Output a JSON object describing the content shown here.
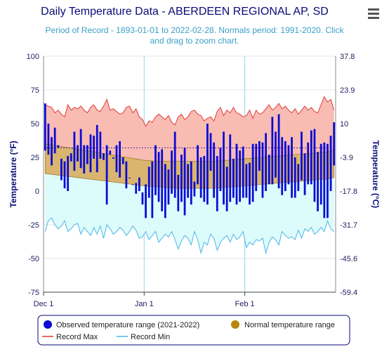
{
  "header": {
    "title": "Daily Temperature Data - ABERDEEN REGIONAL AP, SD",
    "subtitle_line1": "Period of Record - 1893-01-01 to 2022-02-28. Normals period: 1991-2020. Click",
    "subtitle_line2": "and drag to zoom chart.",
    "menu_icon": "hamburger-menu-icon"
  },
  "chart_data": {
    "type": "bar",
    "title": "Daily Temperature Data - ABERDEEN REGIONAL AP, SD",
    "xlabel": "",
    "ylabel": "Temperature (°F)",
    "ylabel_right": "Temperature (°C)",
    "ylim": [
      -75,
      100
    ],
    "ylim_right": [
      -59.4,
      37.8
    ],
    "y_ticks": [
      "100",
      "75",
      "50",
      "25",
      "0",
      "-25",
      "-50",
      "-75"
    ],
    "y_ticks_values": [
      100,
      75,
      50,
      25,
      0,
      -25,
      -50,
      -75
    ],
    "y_right_ticks": [
      "37.8",
      "23.9",
      "10",
      "-3.9",
      "-17.8",
      "-31.7",
      "-45.6",
      "-59.4"
    ],
    "x_ticks": [
      "Dec 1",
      "Jan 1",
      "Feb 1"
    ],
    "x_ticks_day_index": [
      0,
      31,
      62
    ],
    "n_days": 90,
    "freezing_line_f": 32,
    "grid": true,
    "legend_position": "bottom",
    "legend": [
      {
        "label": "Observed temperature range (2021-2022)",
        "color": "#0b0bd6"
      },
      {
        "label": "Normal temperature range",
        "color": "#b8860b"
      },
      {
        "label": "Record Max",
        "color": "#e23b3b"
      },
      {
        "label": "Record Min",
        "color": "#4bb6e6"
      }
    ],
    "observed_low": [
      30,
      27,
      19,
      28,
      32,
      8,
      2,
      0,
      22,
      15,
      22,
      17,
      13,
      20,
      14,
      24,
      14,
      24,
      23,
      -10,
      27,
      24,
      14,
      10,
      20,
      2,
      14,
      6,
      -2,
      0,
      -10,
      -20,
      -5,
      -20,
      -3,
      -8,
      -15,
      -20,
      -10,
      -2,
      -5,
      -15,
      -8,
      -18,
      -5,
      -10,
      -4,
      5,
      -5,
      -8,
      -10,
      15,
      -5,
      -15,
      0,
      -10,
      -15,
      -8,
      -5,
      -10,
      -8,
      -5,
      -5,
      -10,
      -8,
      0,
      15,
      -5,
      0,
      5,
      5,
      10,
      2,
      -3,
      0,
      5,
      -5,
      -5,
      0,
      8,
      -3,
      5,
      5,
      -8,
      -15,
      -10,
      -20,
      -20,
      0,
      19
    ],
    "observed_high": [
      65,
      50,
      40,
      47,
      34,
      24,
      22,
      26,
      28,
      44,
      34,
      46,
      34,
      34,
      42,
      41,
      49,
      44,
      28,
      34,
      30,
      25,
      34,
      37,
      25,
      22,
      10,
      5,
      6,
      10,
      -1,
      5,
      18,
      22,
      34,
      29,
      31,
      20,
      16,
      30,
      44,
      12,
      27,
      32,
      20,
      22,
      7,
      34,
      25,
      26,
      50,
      43,
      36,
      26,
      32,
      44,
      18,
      42,
      24,
      35,
      30,
      33,
      20,
      21,
      35,
      35,
      37,
      36,
      43,
      27,
      55,
      44,
      57,
      40,
      37,
      34,
      40,
      25,
      20,
      44,
      28,
      36,
      45,
      46,
      29,
      35,
      36,
      35,
      41,
      51
    ],
    "normal_low": [
      13,
      12.7,
      12.4,
      12.1,
      11.8,
      11.5,
      11.2,
      10.9,
      10.6,
      10.3,
      10,
      9.7,
      9.4,
      9.1,
      8.8,
      8.5,
      8.2,
      7.9,
      7.6,
      7.3,
      7,
      6.7,
      6.4,
      6.1,
      5.8,
      5.5,
      5.2,
      4.9,
      4.6,
      4.3,
      4,
      3.8,
      3.6,
      3.4,
      3.2,
      3,
      2.8,
      2.6,
      2.4,
      2.2,
      2,
      2,
      2,
      2,
      2,
      2,
      2,
      2,
      2,
      2,
      2,
      2,
      2,
      2.2,
      2.4,
      2.6,
      2.8,
      3,
      3.2,
      3.4,
      3.6,
      3.8,
      4,
      4.2,
      4.4,
      4.6,
      4.8,
      5,
      5.2,
      5.4,
      5.6,
      5.8,
      6,
      6.2,
      6.4,
      6.6,
      6.8,
      7,
      7.2,
      7.4,
      7.6,
      7.8,
      8,
      8.2,
      8.4,
      8.6,
      8.8,
      9,
      9.5,
      10
    ],
    "normal_high": [
      35,
      34.6,
      34.2,
      33.8,
      33.4,
      33,
      32.6,
      32.2,
      31.8,
      31.4,
      31,
      30.6,
      30.2,
      29.8,
      29.4,
      29,
      28.6,
      28.2,
      27.8,
      27.4,
      27,
      26.6,
      26.2,
      25.8,
      25.4,
      25,
      24.6,
      24.2,
      23.8,
      23.4,
      23,
      22.8,
      22.6,
      22.4,
      22.2,
      22,
      22,
      22,
      22,
      22,
      22,
      22,
      22,
      22,
      22,
      22,
      22,
      22,
      22,
      22,
      22,
      22,
      22,
      22.2,
      22.4,
      22.6,
      22.8,
      23,
      23.2,
      23.4,
      23.6,
      23.8,
      24,
      24.2,
      24.4,
      24.6,
      24.8,
      25,
      25.2,
      25.4,
      25.6,
      25.8,
      26,
      26.2,
      26.4,
      26.6,
      26.8,
      27,
      27.2,
      27.4,
      27.6,
      27.8,
      28,
      28.2,
      28.4,
      28.6,
      28.8,
      29,
      29.5,
      31
    ],
    "record_max": [
      64,
      63,
      62,
      58,
      60,
      57,
      55,
      64,
      60,
      62,
      61,
      63,
      60,
      58,
      62,
      64,
      60,
      59,
      63,
      68,
      60,
      61,
      59,
      57,
      58,
      62,
      63,
      58,
      61,
      55,
      53,
      48,
      52,
      51,
      55,
      57,
      55,
      53,
      56,
      51,
      49,
      55,
      57,
      53,
      55,
      59,
      60,
      57,
      56,
      52,
      54,
      55,
      52,
      59,
      62,
      56,
      60,
      58,
      62,
      58,
      57,
      55,
      56,
      60,
      54,
      60,
      57,
      58,
      61,
      64,
      60,
      62,
      65,
      61,
      63,
      60,
      58,
      61,
      57,
      60,
      63,
      60,
      62,
      59,
      58,
      64,
      70,
      66,
      68,
      60
    ],
    "record_min": [
      -30,
      -22,
      -20,
      -25,
      -28,
      -26,
      -22,
      -30,
      -28,
      -25,
      -24,
      -32,
      -27,
      -30,
      -33,
      -27,
      -32,
      -26,
      -35,
      -25,
      -28,
      -32,
      -30,
      -27,
      -29,
      -33,
      -30,
      -26,
      -29,
      -35,
      -34,
      -30,
      -36,
      -33,
      -30,
      -38,
      -35,
      -32,
      -34,
      -30,
      -36,
      -43,
      -37,
      -33,
      -35,
      -40,
      -30,
      -36,
      -46,
      -38,
      -40,
      -32,
      -35,
      -44,
      -38,
      -35,
      -33,
      -38,
      -32,
      -36,
      -34,
      -30,
      -42,
      -38,
      -40,
      -36,
      -37,
      -35,
      -46,
      -38,
      -34,
      -36,
      -40,
      -30,
      -33,
      -35,
      -34,
      -36,
      -29,
      -35,
      -28,
      -30,
      -27,
      -32,
      -30,
      -27,
      -30,
      -22,
      -28,
      -30
    ]
  }
}
